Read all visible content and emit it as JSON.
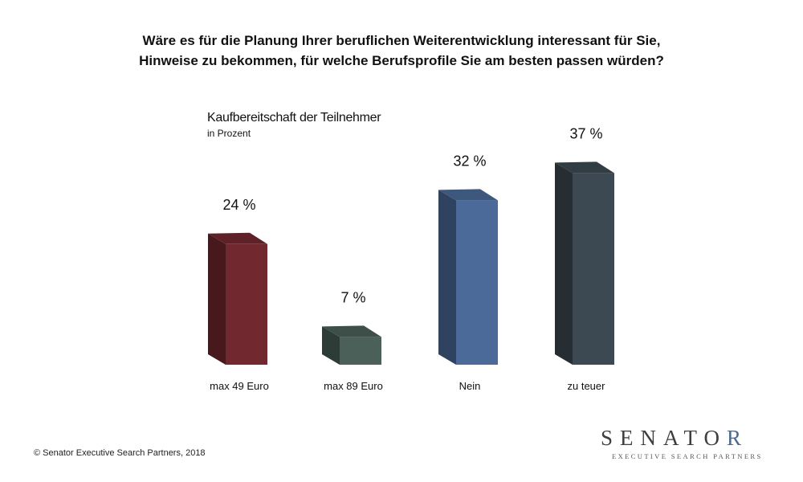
{
  "question": {
    "line1": "Wäre es für die Planung Ihrer beruflichen Weiterentwicklung interessant für Sie,",
    "line2": "Hinweise zu bekommen, für welche Berufsprofile Sie am besten passen würden?"
  },
  "chart_data": {
    "type": "bar",
    "title": "Kaufbereitschaft der Teilnehmer",
    "unit_label": "in Prozent",
    "categories": [
      "max 49 Euro",
      "max 89 Euro",
      "Nein",
      "zu teuer"
    ],
    "values": [
      24,
      7,
      32,
      37
    ],
    "data_labels": [
      "24 %",
      "7 %",
      "32 %",
      "37 %"
    ],
    "colors": [
      "#72282f",
      "#4a6058",
      "#4b6a99",
      "#3d4952"
    ],
    "style": "3d-columns",
    "grid": false,
    "legend": "none"
  },
  "footer": {
    "copyright": "© Senator Executive Search Partners, 2018",
    "logo_name_main": "SENATO",
    "logo_name_last": "R",
    "logo_tagline": "EXECUTIVE SEARCH PARTNERS"
  }
}
